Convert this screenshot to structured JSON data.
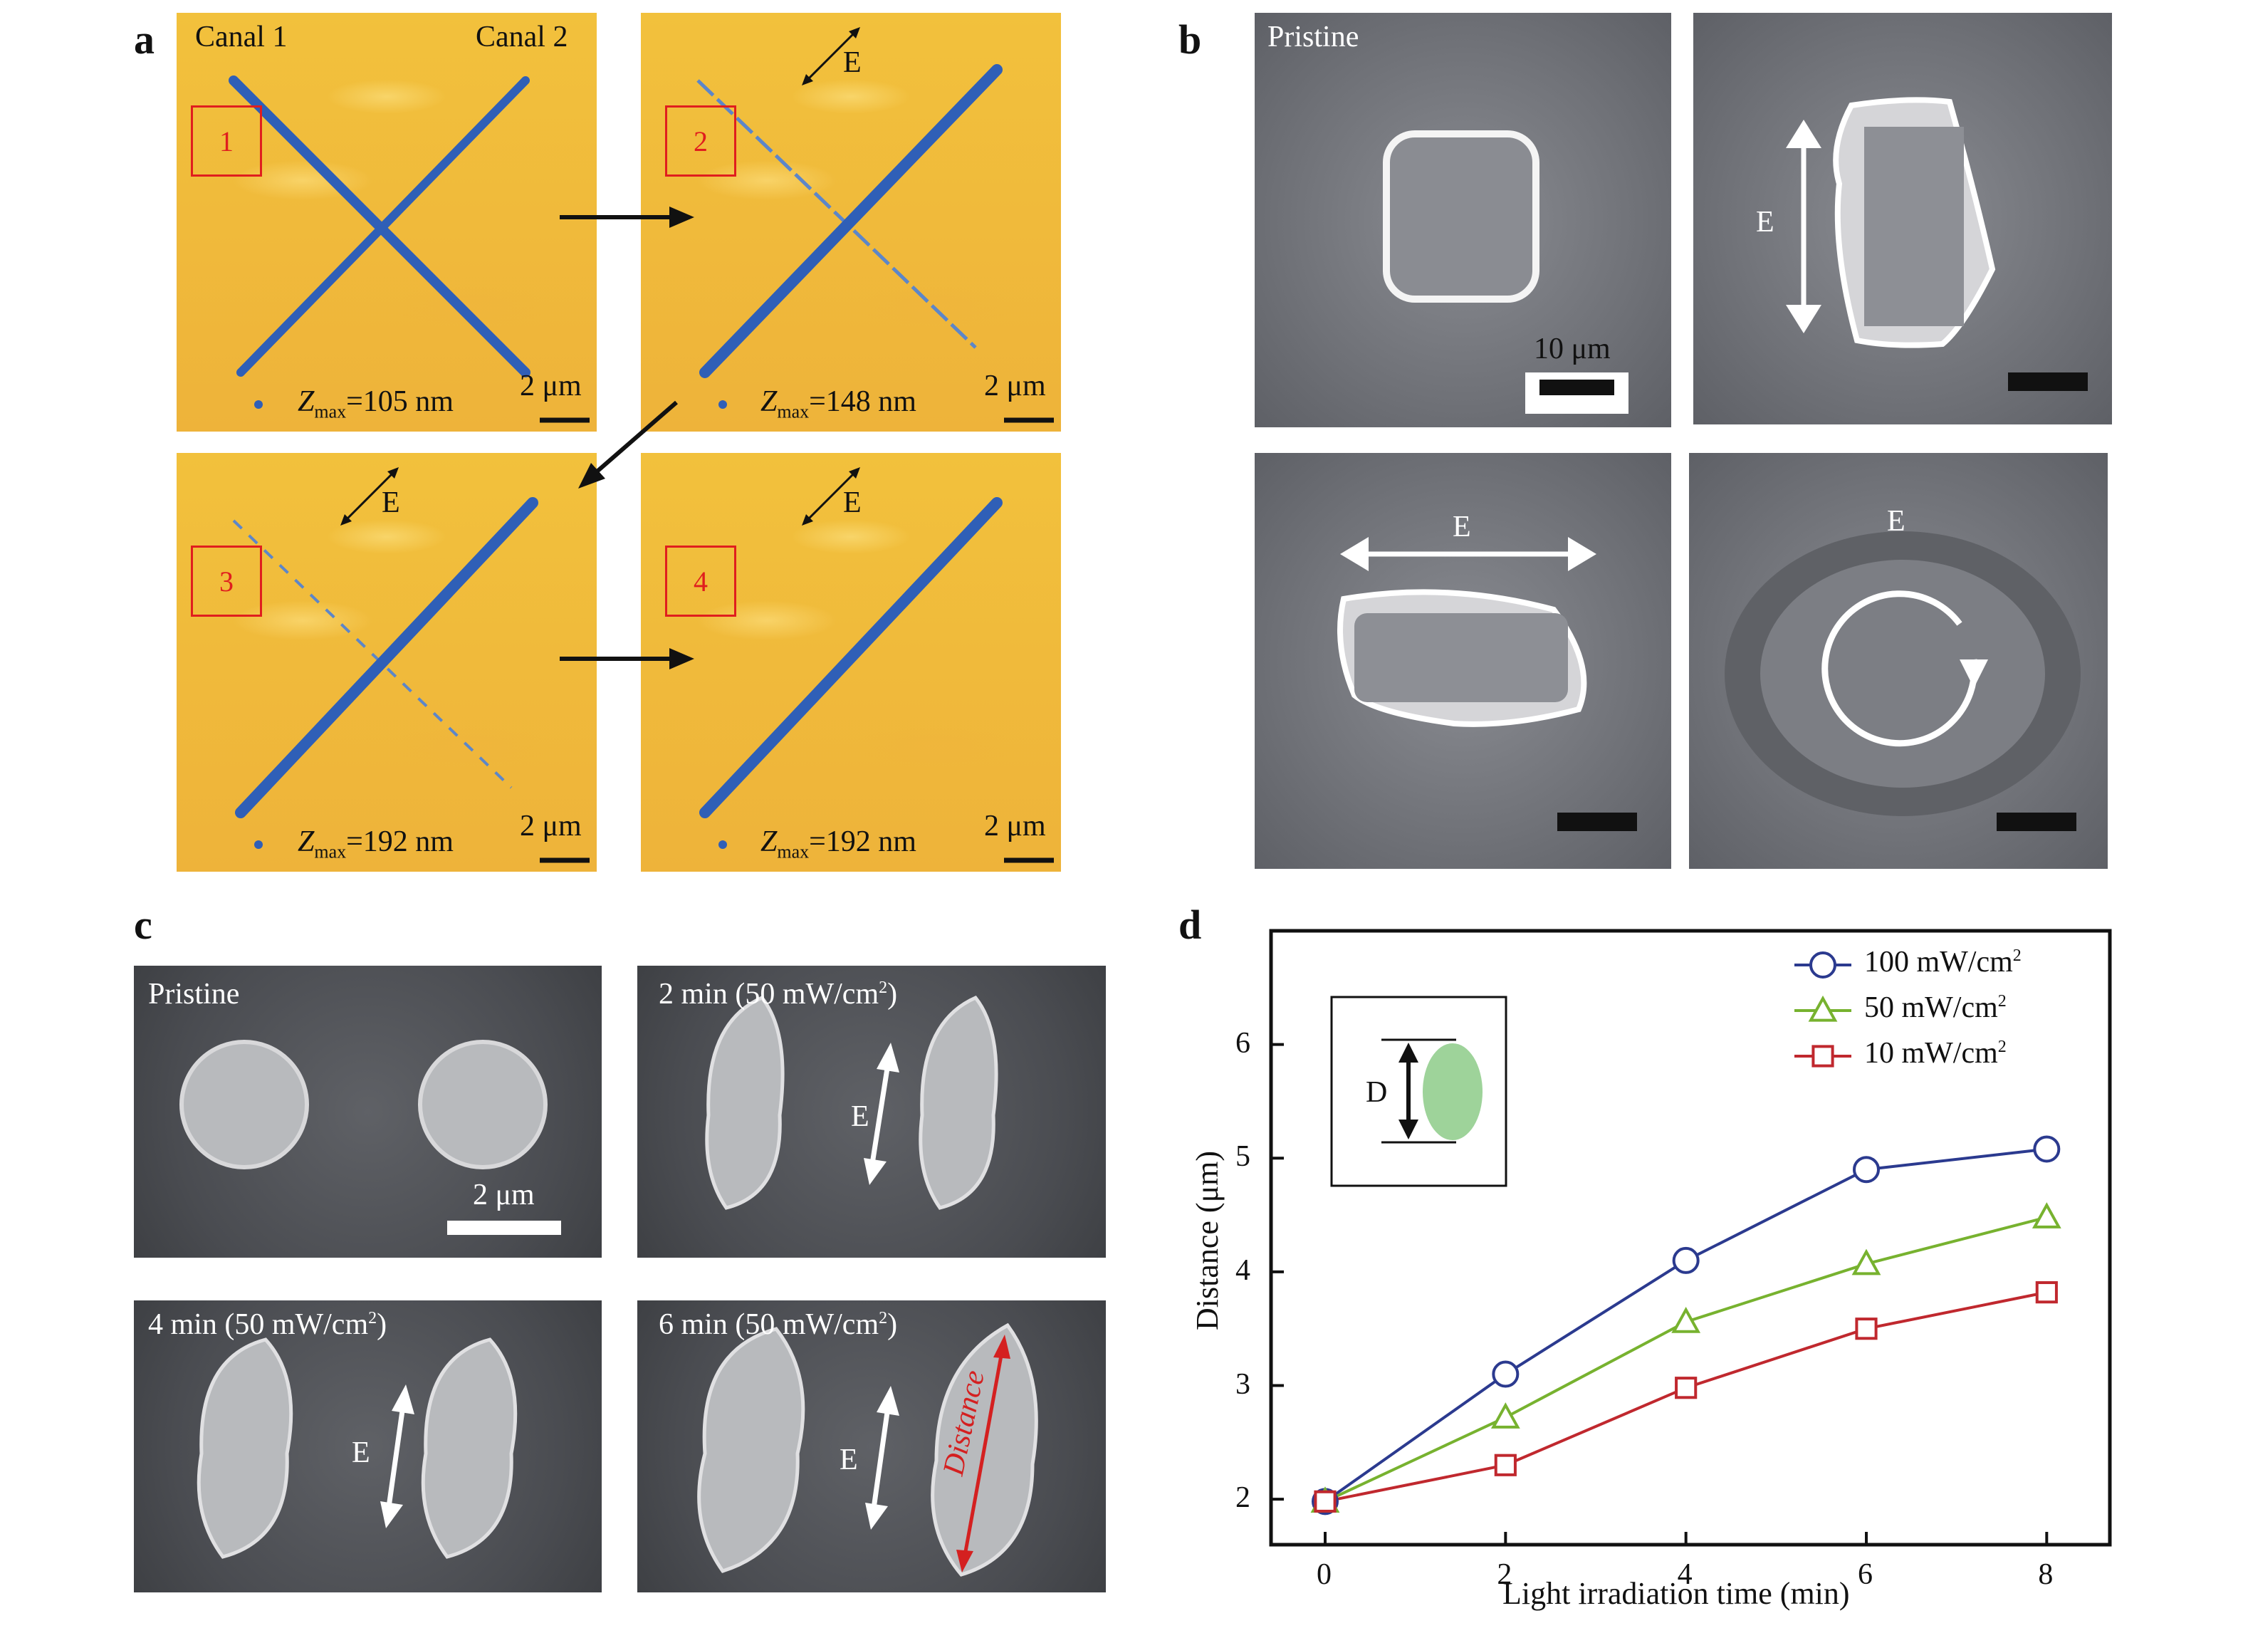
{
  "panels": {
    "a": "a",
    "b": "b",
    "c": "c",
    "d": "d"
  },
  "panel_a": {
    "canal1": "Canal 1",
    "canal2": "Canal 2",
    "boxes": [
      "1",
      "2",
      "3",
      "4"
    ],
    "e_label": "E",
    "scale": "2 μm",
    "z_prefix": "Z",
    "z_sub": "max",
    "z_values": [
      "=105 nm",
      "=148 nm",
      "=192 nm",
      "=192 nm"
    ]
  },
  "panel_b": {
    "pristine": "Pristine",
    "scale": "10 μm",
    "e_label": "E"
  },
  "panel_c": {
    "labels": [
      "Pristine",
      "2 min (50 mW/cm",
      "4 min (50 mW/cm",
      "6 min (50 mW/cm"
    ],
    "sup": "2",
    "close": ")",
    "scale": "2 μm",
    "e_label": "E",
    "distance": "Distance"
  },
  "chart_data": {
    "type": "line",
    "xlabel": "Light irradiation time (min)",
    "ylabel": "Distance (μm)",
    "x": [
      0,
      2,
      4,
      6,
      8
    ],
    "xlim": [
      -0.6,
      8.7
    ],
    "ylim": [
      1.6,
      7.0
    ],
    "xticks": [
      "0",
      "2",
      "4",
      "6",
      "8"
    ],
    "yticks": [
      "2",
      "3",
      "4",
      "5",
      "6"
    ],
    "legend_placement": "top-right",
    "inset_label": "D",
    "series": [
      {
        "name": "100 mW/cm",
        "sup": "2",
        "marker": "circle",
        "color": "#2b3a8f",
        "values": [
          1.98,
          3.1,
          4.1,
          4.9,
          5.08
        ]
      },
      {
        "name": "50 mW/cm",
        "sup": "2",
        "marker": "triangle",
        "color": "#77b22f",
        "values": [
          1.98,
          2.72,
          3.56,
          4.07,
          4.48
        ]
      },
      {
        "name": "10 mW/cm",
        "sup": "2",
        "marker": "square",
        "color": "#c0282e",
        "values": [
          1.98,
          2.3,
          2.98,
          3.5,
          3.82
        ]
      }
    ]
  }
}
